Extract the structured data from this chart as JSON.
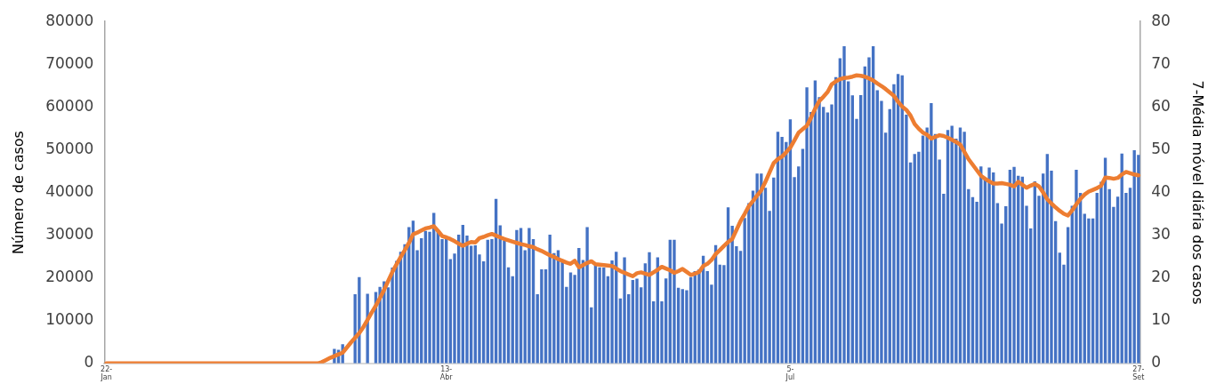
{
  "chart_data": {
    "type": "bar",
    "ylabel": "Número de casos",
    "y2label": "7-Média móvel diária dos casos",
    "categories": [
      "22-Jan",
      null,
      null,
      null,
      null,
      null,
      null,
      null,
      null,
      null,
      null,
      null,
      null,
      null,
      null,
      null,
      null,
      null,
      null,
      null,
      null,
      null,
      null,
      null,
      null,
      null,
      null,
      null,
      null,
      null,
      null,
      null,
      null,
      null,
      null,
      null,
      null,
      null,
      null,
      null,
      null,
      null,
      null,
      null,
      null,
      null,
      null,
      null,
      null,
      null,
      null,
      null,
      null,
      null,
      null,
      null,
      null,
      null,
      null,
      null,
      null,
      null,
      null,
      null,
      null,
      null,
      null,
      null,
      null,
      null,
      null,
      null,
      null,
      null,
      null,
      null,
      null,
      null,
      null,
      null,
      null,
      null,
      "13-Abr",
      null,
      null,
      null,
      null,
      null,
      null,
      null,
      null,
      null,
      null,
      null,
      null,
      null,
      null,
      null,
      null,
      null,
      null,
      null,
      null,
      null,
      null,
      null,
      null,
      null,
      null,
      null,
      null,
      null,
      null,
      null,
      null,
      null,
      null,
      null,
      null,
      null,
      null,
      null,
      null,
      null,
      null,
      null,
      null,
      null,
      null,
      null,
      null,
      null,
      null,
      null,
      null,
      null,
      null,
      null,
      null,
      null,
      null,
      null,
      null,
      null,
      null,
      null,
      null,
      null,
      null,
      null,
      null,
      null,
      null,
      null,
      null,
      null,
      null,
      null,
      null,
      null,
      null,
      null,
      null,
      null,
      null,
      "5-Jul",
      null,
      null,
      null,
      null,
      null,
      null,
      null,
      null,
      null,
      null,
      null,
      null,
      null,
      null,
      null,
      null,
      null,
      null,
      null,
      null,
      null,
      null,
      null,
      null,
      null,
      null,
      null,
      null,
      null,
      null,
      null,
      null,
      null,
      null,
      null,
      null,
      null,
      null,
      null,
      null,
      null,
      null,
      null,
      null,
      null,
      null,
      null,
      null,
      null,
      null,
      null,
      null,
      null,
      null,
      null,
      null,
      null,
      null,
      null,
      null,
      null,
      null,
      null,
      null,
      null,
      null,
      null,
      null,
      null,
      null,
      null,
      null,
      null,
      null,
      null,
      null,
      null,
      null,
      null,
      null,
      null,
      null,
      null,
      "27-Set"
    ],
    "series": [
      {
        "color": "#4472c4",
        "values": [
          0,
          0,
          0,
          0,
          0,
          0,
          0,
          0,
          0,
          0,
          0,
          0,
          0,
          0,
          0,
          0,
          0,
          0,
          0,
          0,
          0,
          0,
          0,
          0,
          0,
          0,
          0,
          0,
          0,
          0,
          0,
          0,
          0,
          0,
          0,
          0,
          0,
          0,
          0,
          0,
          0,
          0,
          0,
          0,
          0,
          0,
          0,
          0,
          0,
          0,
          0,
          0,
          0,
          0,
          0,
          3400,
          3200,
          4500,
          0,
          0,
          16200,
          20200,
          0,
          16300,
          0,
          16700,
          17900,
          19200,
          17800,
          22400,
          24000,
          26100,
          27900,
          31900,
          33400,
          26500,
          29300,
          31000,
          30800,
          35200,
          30900,
          29100,
          29300,
          24400,
          25700,
          30100,
          32400,
          29900,
          27500,
          27600,
          25500,
          23900,
          28900,
          29100,
          38500,
          32300,
          28700,
          22500,
          20400,
          31200,
          31700,
          26500,
          31700,
          29100,
          16200,
          22000,
          22000,
          30100,
          25800,
          26500,
          23700,
          17900,
          21300,
          20700,
          27000,
          24200,
          31900,
          13100,
          23200,
          22500,
          22400,
          20400,
          24100,
          26100,
          15200,
          24800,
          16200,
          19500,
          19800,
          17800,
          23400,
          26000,
          14500,
          24800,
          14500,
          19900,
          28900,
          28900,
          17700,
          17400,
          17100,
          20200,
          21600,
          22000,
          25200,
          21600,
          18400,
          27700,
          23100,
          23000,
          36500,
          32200,
          27400,
          26300,
          34000,
          37500,
          40400,
          44400,
          44400,
          41100,
          35700,
          43500,
          54200,
          53000,
          51800,
          57100,
          43600,
          46100,
          50200,
          64600,
          58800,
          66200,
          62300,
          60000,
          58700,
          60600,
          67000,
          71400,
          74200,
          66000,
          62700,
          57200,
          62800,
          69500,
          71600,
          74200,
          63900,
          61400,
          54000,
          59500,
          65300,
          67700,
          67400,
          58200,
          47000,
          49000,
          49500,
          53300,
          55200,
          60900,
          53700,
          47700,
          39700,
          54600,
          55600,
          52600,
          55200,
          54200,
          40800,
          38900,
          37800,
          46100,
          43500,
          45800,
          44700,
          37500,
          32700,
          36800,
          45300,
          46000,
          43900,
          43700,
          36900,
          31600,
          42600,
          39200,
          44400,
          49000,
          45100,
          33300,
          25900,
          23100,
          31900,
          36900,
          45300,
          39900,
          35000,
          33900,
          33900,
          39900,
          42500,
          48100,
          40800,
          36600,
          39000,
          49100,
          39900,
          41100,
          49900,
          48800
        ]
      },
      {
        "type": "line",
        "axis": "y2",
        "color": "#ed7d31",
        "values": [
          0,
          0,
          0,
          0,
          0,
          0,
          0,
          0,
          0,
          0,
          0,
          0,
          0,
          0,
          0,
          0,
          0,
          0,
          0,
          0,
          0,
          0,
          0,
          0,
          0,
          0,
          0,
          0,
          0,
          0,
          0,
          0,
          0,
          0,
          0,
          0,
          0,
          0,
          0,
          0,
          0,
          0,
          0,
          0,
          0,
          0,
          0,
          0,
          0,
          0,
          0,
          0,
          0.3,
          0.8,
          1.3,
          1.7,
          2.1,
          2.5,
          3.7,
          4.9,
          6.0,
          7.1,
          8.5,
          10.2,
          11.9,
          13.5,
          15.3,
          17.2,
          19.3,
          21.4,
          23.2,
          24.9,
          26.5,
          28.2,
          30.2,
          30.6,
          31.1,
          31.6,
          31.8,
          32.1,
          31.0,
          29.8,
          29.5,
          29.1,
          28.6,
          28.0,
          27.5,
          28.0,
          28.4,
          28.3,
          29.3,
          29.6,
          30.0,
          30.3,
          29.9,
          29.5,
          29.1,
          28.8,
          28.5,
          28.2,
          27.9,
          27.7,
          27.4,
          27.2,
          26.7,
          26.3,
          25.8,
          25.3,
          24.9,
          24.4,
          24.0,
          23.6,
          23.3,
          24.0,
          22.5,
          23.0,
          23.5,
          23.9,
          23.2,
          23.1,
          23.0,
          22.9,
          22.8,
          22.2,
          21.6,
          21.2,
          20.8,
          20.4,
          21.1,
          21.3,
          21.0,
          20.7,
          21.3,
          21.9,
          22.6,
          22.2,
          21.8,
          21.2,
          21.6,
          22.1,
          21.4,
          20.7,
          21.0,
          21.4,
          22.8,
          23.3,
          24.2,
          25.6,
          26.5,
          27.5,
          28.4,
          29.1,
          31.2,
          33.3,
          35.0,
          36.8,
          38.0,
          39.3,
          40.5,
          42.5,
          44.7,
          46.9,
          47.8,
          48.4,
          49.4,
          50.5,
          52.2,
          54.0,
          54.8,
          55.6,
          57.5,
          59.6,
          61.4,
          62.4,
          63.5,
          65.3,
          66.0,
          66.5,
          66.8,
          66.9,
          67.1,
          67.4,
          67.3,
          67.1,
          66.7,
          66.2,
          65.5,
          64.9,
          64.2,
          63.4,
          62.6,
          61.2,
          60.1,
          59.3,
          58.0,
          56.0,
          54.9,
          54.0,
          53.5,
          52.6,
          53.0,
          53.4,
          53.2,
          52.8,
          52.3,
          51.8,
          51.2,
          49.5,
          47.8,
          46.5,
          45.2,
          43.9,
          43.2,
          42.6,
          42.1,
          42.1,
          42.2,
          42.0,
          41.8,
          41.4,
          42.5,
          41.8,
          41.1,
          41.6,
          42.0,
          41.4,
          40.0,
          38.4,
          37.4,
          36.5,
          35.7,
          35.0,
          34.6,
          35.8,
          37.2,
          38.5,
          39.5,
          40.2,
          40.6,
          41.0,
          41.6,
          43.5,
          43.4,
          43.2,
          43.4,
          44.2,
          44.8,
          44.5,
          44.2,
          44.0
        ]
      }
    ],
    "marker": "none",
    "ylim": [
      0,
      80000
    ],
    "yticks": [
      0,
      10000,
      20000,
      30000,
      40000,
      50000,
      60000,
      70000,
      80000
    ],
    "y2lim": [
      0,
      80
    ],
    "y2ticks": [
      0,
      10,
      20,
      30,
      40,
      50,
      60,
      70,
      80
    ]
  }
}
